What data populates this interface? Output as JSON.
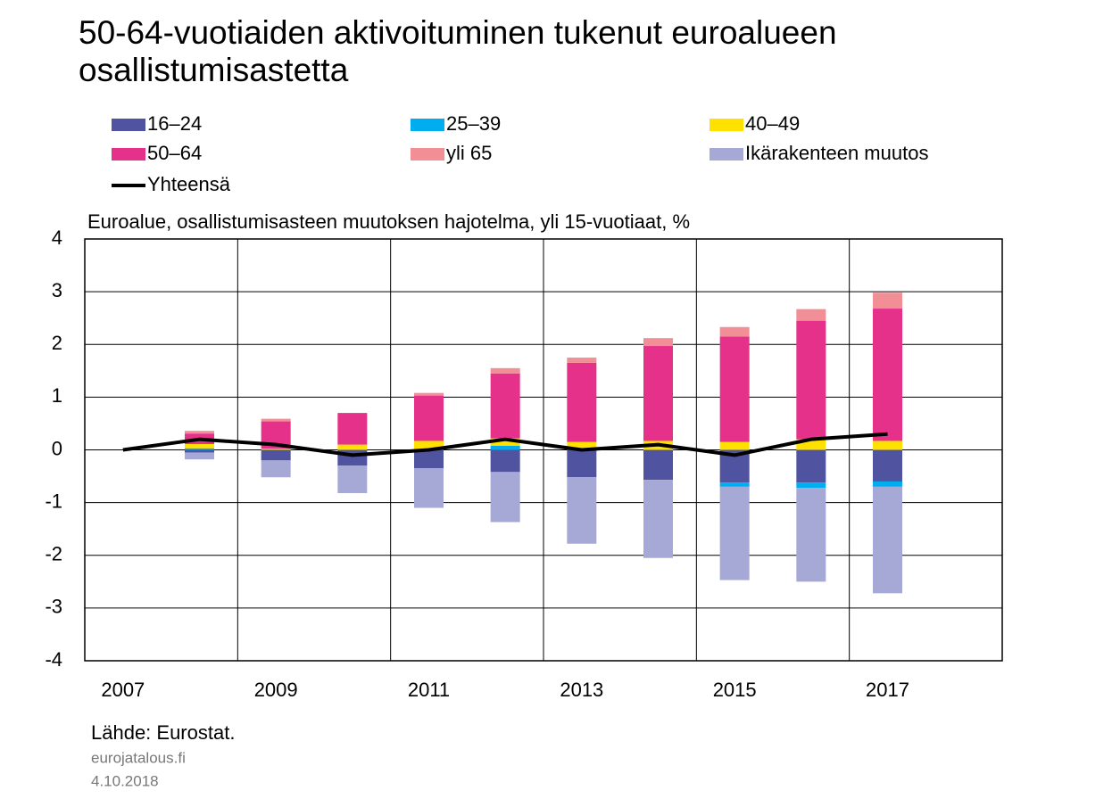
{
  "chart_data": {
    "type": "bar",
    "stacked": true,
    "title": "50-64-vuotiaiden aktivoituminen tukenut euroalueen osallistumisastetta",
    "subtitle": "Euroalue, osallistumisasteen muutoksen hajotelma, yli 15-vuotiaat, %",
    "source": "Lähde: Eurostat.",
    "site": "eurojatalous.fi",
    "date": "4.10.2018",
    "categories": [
      "2007",
      null,
      "2009",
      null,
      "2011",
      null,
      "2013",
      null,
      "2015",
      null,
      "2017",
      null
    ],
    "series": [
      {
        "name": "16–24",
        "color": "#4f53a0",
        "values": [
          0,
          -0.05,
          -0.2,
          -0.3,
          -0.35,
          -0.42,
          -0.52,
          -0.57,
          -0.62,
          -0.62,
          -0.6,
          null
        ]
      },
      {
        "name": "25–39",
        "color": "#00aeef",
        "values": [
          0,
          0.03,
          0,
          0,
          0,
          0.08,
          0,
          0,
          -0.08,
          -0.1,
          -0.1,
          null
        ]
      },
      {
        "name": "40–49",
        "color": "#ffe100",
        "values": [
          0,
          0.08,
          0.02,
          0.1,
          0.17,
          0.14,
          0.15,
          0.17,
          0.15,
          0.2,
          0.17,
          null
        ]
      },
      {
        "name": "50–64",
        "color": "#e5318a",
        "values": [
          0,
          0.2,
          0.52,
          0.6,
          0.86,
          1.23,
          1.5,
          1.8,
          2.0,
          2.25,
          2.51,
          null
        ]
      },
      {
        "name": "yli 65",
        "color": "#f28e96",
        "values": [
          0,
          0.05,
          0.05,
          0,
          0.05,
          0.1,
          0.1,
          0.15,
          0.18,
          0.22,
          0.3,
          null
        ]
      },
      {
        "name": "Ikärakenteen muutos",
        "color": "#a6a9d6",
        "values": [
          0,
          -0.13,
          -0.32,
          -0.52,
          -0.75,
          -0.95,
          -1.26,
          -1.48,
          -1.77,
          -1.78,
          -2.02,
          null
        ]
      },
      {
        "name": "Yhteensä",
        "color": "#000000",
        "type": "line",
        "values": [
          0,
          0.2,
          0.1,
          -0.1,
          0,
          0.2,
          0,
          0.1,
          -0.1,
          0.2,
          0.3,
          null
        ]
      }
    ],
    "ylim": [
      -4,
      4
    ],
    "yticks": [
      -4,
      -3,
      -2,
      -1,
      0,
      1,
      2,
      3,
      4
    ],
    "grid": true
  }
}
